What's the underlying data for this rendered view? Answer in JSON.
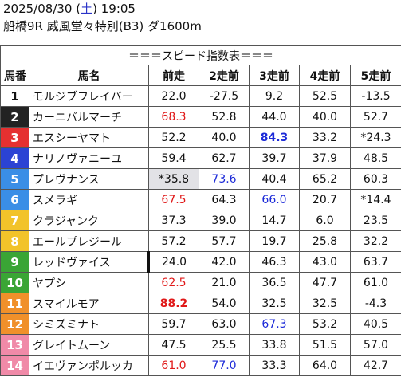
{
  "header": {
    "date": "2025/08/30",
    "weekday_open": " (",
    "weekday": "土",
    "weekday_close": ")",
    "time": " 19:05",
    "race": "船橋9R 威風堂々特別(B3) ダ1600m"
  },
  "table_title": "＝＝＝スピード指数表＝＝＝",
  "columns": [
    "馬番",
    "馬名",
    "前走",
    "2走前",
    "3走前",
    "4走前",
    "5走前"
  ],
  "colors": {
    "red": "#e01818",
    "blue": "#1c2ad8",
    "highlight": "#e2e2e6"
  },
  "rows": [
    {
      "num": "1",
      "bg": "#ffffff",
      "fg": "#111111",
      "name": "モルジブフレイバー",
      "v": [
        "22.0",
        "-27.5",
        "9.2",
        "52.5",
        "-13.5"
      ],
      "c": [
        "",
        "",
        "",
        "",
        ""
      ]
    },
    {
      "num": "2",
      "bg": "#222222",
      "fg": "#ffffff",
      "name": "カーニバルマーチ",
      "v": [
        "68.3",
        "52.8",
        "44.0",
        "40.0",
        "52.7"
      ],
      "c": [
        "red",
        "",
        "",
        "",
        ""
      ]
    },
    {
      "num": "3",
      "bg": "#e53030",
      "fg": "#ffffff",
      "name": "エスシーヤマト",
      "v": [
        "52.2",
        "40.0",
        "84.3",
        "33.2",
        "*24.3"
      ],
      "c": [
        "",
        "",
        "blue bold",
        "",
        ""
      ]
    },
    {
      "num": "4",
      "bg": "#2b43d4",
      "fg": "#ffffff",
      "name": "ナリノヴァニーユ",
      "v": [
        "59.4",
        "62.7",
        "39.7",
        "37.9",
        "48.5"
      ],
      "c": [
        "",
        "",
        "",
        "",
        ""
      ]
    },
    {
      "num": "5",
      "bg": "#3a8ee6",
      "fg": "#ffffff",
      "name": "プレヴナンス",
      "v": [
        "*35.8",
        "73.6",
        "40.4",
        "65.2",
        "60.3"
      ],
      "c": [
        "grey",
        "blue",
        "",
        "",
        ""
      ]
    },
    {
      "num": "6",
      "bg": "#3a8ee6",
      "fg": "#ffffff",
      "name": "スメラギ",
      "v": [
        "67.5",
        "64.3",
        "66.0",
        "20.7",
        "*14.4"
      ],
      "c": [
        "red",
        "",
        "blue",
        "",
        ""
      ]
    },
    {
      "num": "7",
      "bg": "#f2c32a",
      "fg": "#ffffff",
      "name": "クラジャンク",
      "v": [
        "37.3",
        "39.0",
        "14.7",
        "6.0",
        "23.5"
      ],
      "c": [
        "",
        "",
        "",
        "",
        ""
      ]
    },
    {
      "num": "8",
      "bg": "#f2c32a",
      "fg": "#ffffff",
      "name": "エールプレジール",
      "v": [
        "57.2",
        "57.7",
        "19.7",
        "25.8",
        "32.2"
      ],
      "c": [
        "",
        "",
        "",
        "",
        ""
      ]
    },
    {
      "num": "9",
      "bg": "#3aa535",
      "fg": "#ffffff",
      "name": "レッドヴァイス",
      "v": [
        "24.0",
        "42.0",
        "46.3",
        "43.0",
        "63.7"
      ],
      "c": [
        "tick",
        "",
        "",
        "",
        ""
      ]
    },
    {
      "num": "10",
      "bg": "#3aa535",
      "fg": "#ffffff",
      "name": "ヤプシ",
      "v": [
        "62.5",
        "21.0",
        "36.5",
        "47.7",
        "61.0"
      ],
      "c": [
        "red",
        "",
        "",
        "",
        ""
      ]
    },
    {
      "num": "11",
      "bg": "#f0902a",
      "fg": "#ffffff",
      "name": "スマイルモア",
      "v": [
        "88.2",
        "54.0",
        "32.5",
        "32.5",
        "-4.3"
      ],
      "c": [
        "red bold",
        "",
        "",
        "",
        ""
      ]
    },
    {
      "num": "12",
      "bg": "#f0902a",
      "fg": "#ffffff",
      "name": "シミズミナト",
      "v": [
        "59.7",
        "63.0",
        "67.3",
        "53.2",
        "40.5"
      ],
      "c": [
        "",
        "",
        "blue",
        "",
        ""
      ]
    },
    {
      "num": "13",
      "bg": "#f08aa8",
      "fg": "#ffffff",
      "name": "グレイトムーン",
      "v": [
        "47.5",
        "25.5",
        "33.8",
        "51.5",
        "57.0"
      ],
      "c": [
        "",
        "",
        "",
        "",
        ""
      ]
    },
    {
      "num": "14",
      "bg": "#f08aa8",
      "fg": "#ffffff",
      "name": "イエヴァンポルッカ",
      "v": [
        "61.0",
        "77.0",
        "33.3",
        "64.0",
        "42.7"
      ],
      "c": [
        "red",
        "blue",
        "",
        "",
        ""
      ]
    }
  ]
}
